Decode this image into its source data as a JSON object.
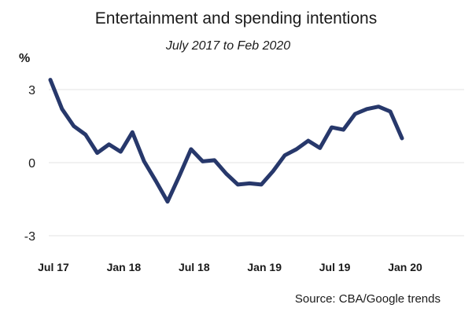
{
  "chart_data": {
    "type": "line",
    "title": "Entertainment and spending intentions",
    "subtitle": "July 2017 to Feb 2020",
    "ylabel": "%",
    "source": "Source: CBA/Google trends",
    "ylim": [
      -3,
      3
    ],
    "yticks": [
      3,
      0,
      -3
    ],
    "ytick_labels": [
      "3",
      "0",
      "-3"
    ],
    "xtick_labels": [
      "Jul 17",
      "Jan 18",
      "Jul 18",
      "Jan 19",
      "Jul 19",
      "Jan 20"
    ],
    "xtick_index": [
      0,
      6,
      12,
      18,
      24,
      30
    ],
    "grid": true,
    "line_color": "#27386b",
    "series": [
      {
        "values": [
          3.4,
          2.2,
          1.5,
          1.15,
          0.4,
          0.75,
          0.45,
          1.25,
          0.05,
          -0.75,
          -1.6,
          -0.55,
          0.55,
          0.05,
          0.1,
          -0.45,
          -0.9,
          -0.85,
          -0.9,
          -0.35,
          0.3,
          0.55,
          0.9,
          0.6,
          1.45,
          1.35,
          2.0,
          2.2,
          2.3,
          2.1,
          1.0
        ]
      }
    ]
  }
}
